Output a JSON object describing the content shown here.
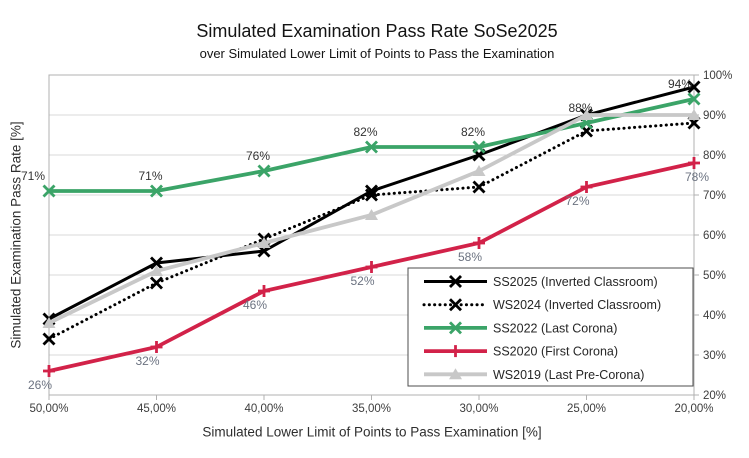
{
  "title": "Simulated Examination Pass Rate SoSe2025",
  "subtitle": "over Simulated Lower Limit of Points to Pass the Examination",
  "chart_data": {
    "type": "line",
    "title": "Simulated Examination Pass Rate SoSe2025",
    "subtitle": "over Simulated Lower Limit of Points to Pass the Examination",
    "xlabel": "Simulated Lower Limit of Points to Pass Examination [%]",
    "ylabel": "Simulated Examination Pass Rate [%]",
    "x_values": [
      50,
      45,
      40,
      35,
      30,
      25,
      20
    ],
    "x_tick_labels": [
      "50,00%",
      "45,00%",
      "40,00%",
      "35,00%",
      "30,00%",
      "25,00%",
      "20,00%"
    ],
    "y_ticks": [
      20,
      30,
      40,
      50,
      60,
      70,
      80,
      90,
      100
    ],
    "y_tick_labels": [
      "20%",
      "30%",
      "40%",
      "50%",
      "60%",
      "70%",
      "80%",
      "90%",
      "100%"
    ],
    "ylim": [
      20,
      100
    ],
    "y_axis_side": "right",
    "grid": "horizontal",
    "legend_position": "inside-bottom-right",
    "series": [
      {
        "name": "SS2025 (Inverted Classroom)",
        "color": "#000000",
        "dash": "solid",
        "marker": "x",
        "stroke_width": 3,
        "values": [
          39,
          53,
          56,
          71,
          80,
          90,
          97
        ]
      },
      {
        "name": "WS2024 (Inverted Classroom)",
        "color": "#000000",
        "dash": "dotted",
        "marker": "x",
        "stroke_width": 3,
        "values": [
          34,
          48,
          59,
          70,
          72,
          86,
          88
        ]
      },
      {
        "name": "SS2022 (Last Corona)",
        "color": "#3BA468",
        "dash": "solid",
        "marker": "x",
        "stroke_width": 3.8,
        "values": [
          71,
          71,
          76,
          82,
          82,
          88,
          94
        ],
        "data_labels": [
          "71%",
          "71%",
          "76%",
          "82%",
          "82%",
          "88%",
          "94%"
        ],
        "label_position": "above",
        "label_color": "#333333"
      },
      {
        "name": "SS2020 (First Corona)",
        "color": "#D22249",
        "dash": "solid",
        "marker": "plus",
        "stroke_width": 3.8,
        "values": [
          26,
          32,
          46,
          52,
          58,
          72,
          78
        ],
        "data_labels": [
          "26%",
          "32%",
          "46%",
          "52%",
          "58%",
          "72%",
          "78%"
        ],
        "label_position": "below",
        "label_color": "#6b7280"
      },
      {
        "name": "WS2019 (Last Pre-Corona)",
        "color": "#C8C8C8",
        "dash": "solid",
        "marker": "triangle",
        "stroke_width": 3.8,
        "values": [
          38,
          51,
          58,
          65,
          76,
          90,
          90
        ]
      }
    ]
  }
}
